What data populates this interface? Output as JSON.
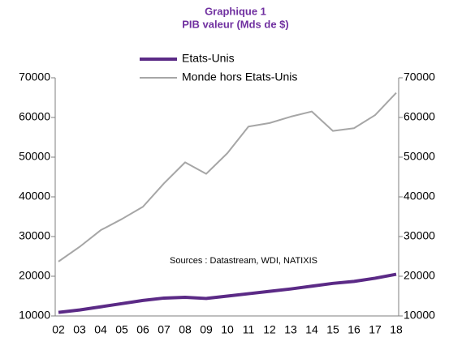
{
  "chart_data": {
    "type": "line",
    "title": "Graphique 1",
    "subtitle": "PIB valeur (Mds de $)",
    "annotation": "Sources : Datastream, WDI, NATIXIS",
    "categories": [
      "02",
      "03",
      "04",
      "05",
      "06",
      "07",
      "08",
      "09",
      "10",
      "11",
      "12",
      "13",
      "14",
      "15",
      "16",
      "17",
      "18"
    ],
    "series": [
      {
        "name": "Etats-Unis",
        "color": "#5b2a86",
        "values": [
          10900,
          11500,
          12300,
          13100,
          13900,
          14500,
          14700,
          14400,
          15000,
          15600,
          16200,
          16800,
          17500,
          18200,
          18700,
          19500,
          20500
        ]
      },
      {
        "name": "Monde hors Etats-Unis",
        "color": "#a6a6a6",
        "values": [
          23700,
          27400,
          31600,
          34400,
          37500,
          43400,
          48700,
          45800,
          51000,
          57700,
          58600,
          60200,
          61500,
          56600,
          57300,
          60600,
          66200
        ]
      }
    ],
    "ylim": [
      10000,
      70000
    ],
    "yticks": [
      10000,
      20000,
      30000,
      40000,
      50000,
      60000,
      70000
    ],
    "y2lim": [
      10000,
      70000
    ],
    "y2ticks": [
      10000,
      20000,
      30000,
      40000,
      50000,
      60000,
      70000
    ]
  }
}
